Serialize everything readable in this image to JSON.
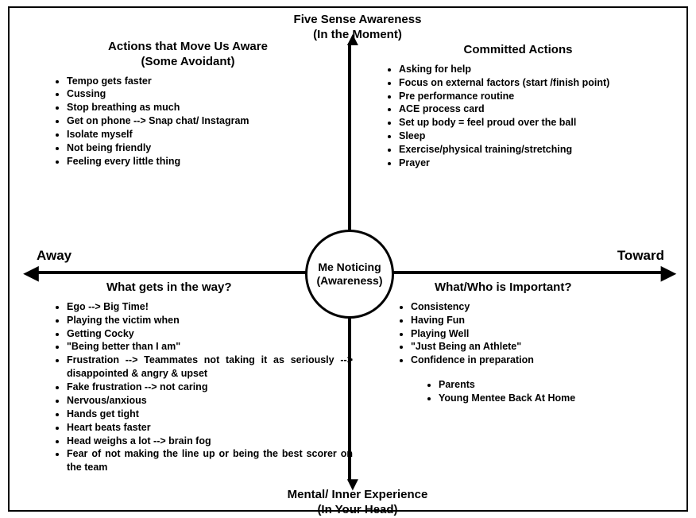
{
  "type": "quadrant-diagram",
  "background_color": "#ffffff",
  "axis_color": "#000000",
  "axis_labels": {
    "top_line1": "Five Sense Awareness",
    "top_line2": "(In the Moment)",
    "bottom_line1": "Mental/ Inner Experience",
    "bottom_line2": "(In Your Head)",
    "left": "Away",
    "right": "Toward"
  },
  "center": {
    "line1": "Me Noticing",
    "line2": "(Awareness)"
  },
  "quadrants": {
    "top_left": {
      "title_line1": "Actions that Move Us Aware",
      "title_line2": "(Some Avoidant)",
      "items": [
        "Tempo gets faster",
        "Cussing",
        "Stop breathing as much",
        "Get on phone --> Snap chat/ Instagram",
        "Isolate myself",
        "Not being friendly",
        "Feeling every little thing"
      ]
    },
    "top_right": {
      "title": "Committed Actions",
      "items": [
        "Asking for help",
        "Focus on external factors (start /finish point)",
        "Pre performance routine",
        "ACE process card",
        "Set up body = feel proud over the ball",
        "Sleep",
        "Exercise/physical training/stretching",
        "Prayer"
      ]
    },
    "bottom_left": {
      "title": "What gets in the way?",
      "items": [
        "Ego --> Big Time!",
        "Playing the victim when",
        "Getting Cocky",
        "\"Being better than I am\"",
        "Frustration --> Teammates not taking it as seriously --> disappointed & angry & upset",
        "Fake frustration --> not caring",
        "Nervous/anxious",
        "Hands get tight",
        "Heart beats faster",
        "Head weighs a lot --> brain fog",
        "Fear of not making the line up or being the best scorer on the team"
      ]
    },
    "bottom_right": {
      "title": "What/Who is Important?",
      "items": [
        "Consistency",
        "Having Fun",
        "Playing Well",
        "\"Just Being an Athlete\"",
        "Confidence in preparation"
      ],
      "sub_items": [
        "Parents",
        "Young Mentee Back At Home"
      ]
    }
  }
}
